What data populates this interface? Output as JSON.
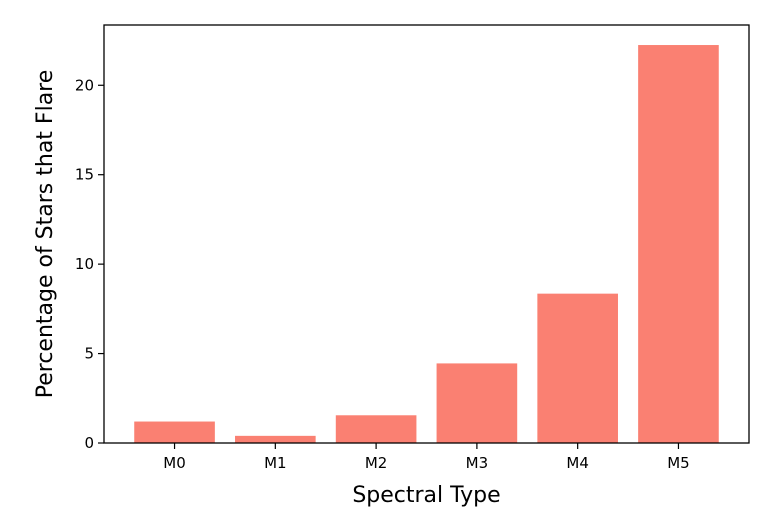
{
  "chart_data": {
    "type": "bar",
    "title": "",
    "xlabel": "Spectral Type",
    "ylabel": "Percentage of Stars that Flare",
    "categories": [
      "M0",
      "M1",
      "M2",
      "M3",
      "M4",
      "M5"
    ],
    "values": [
      1.2,
      0.4,
      1.55,
      4.45,
      8.35,
      22.25
    ],
    "ylim": [
      0,
      23.37
    ],
    "yticks": [
      0,
      5,
      10,
      15,
      20
    ],
    "bar_color": "#fa8072",
    "grid": false,
    "legend": "none"
  }
}
